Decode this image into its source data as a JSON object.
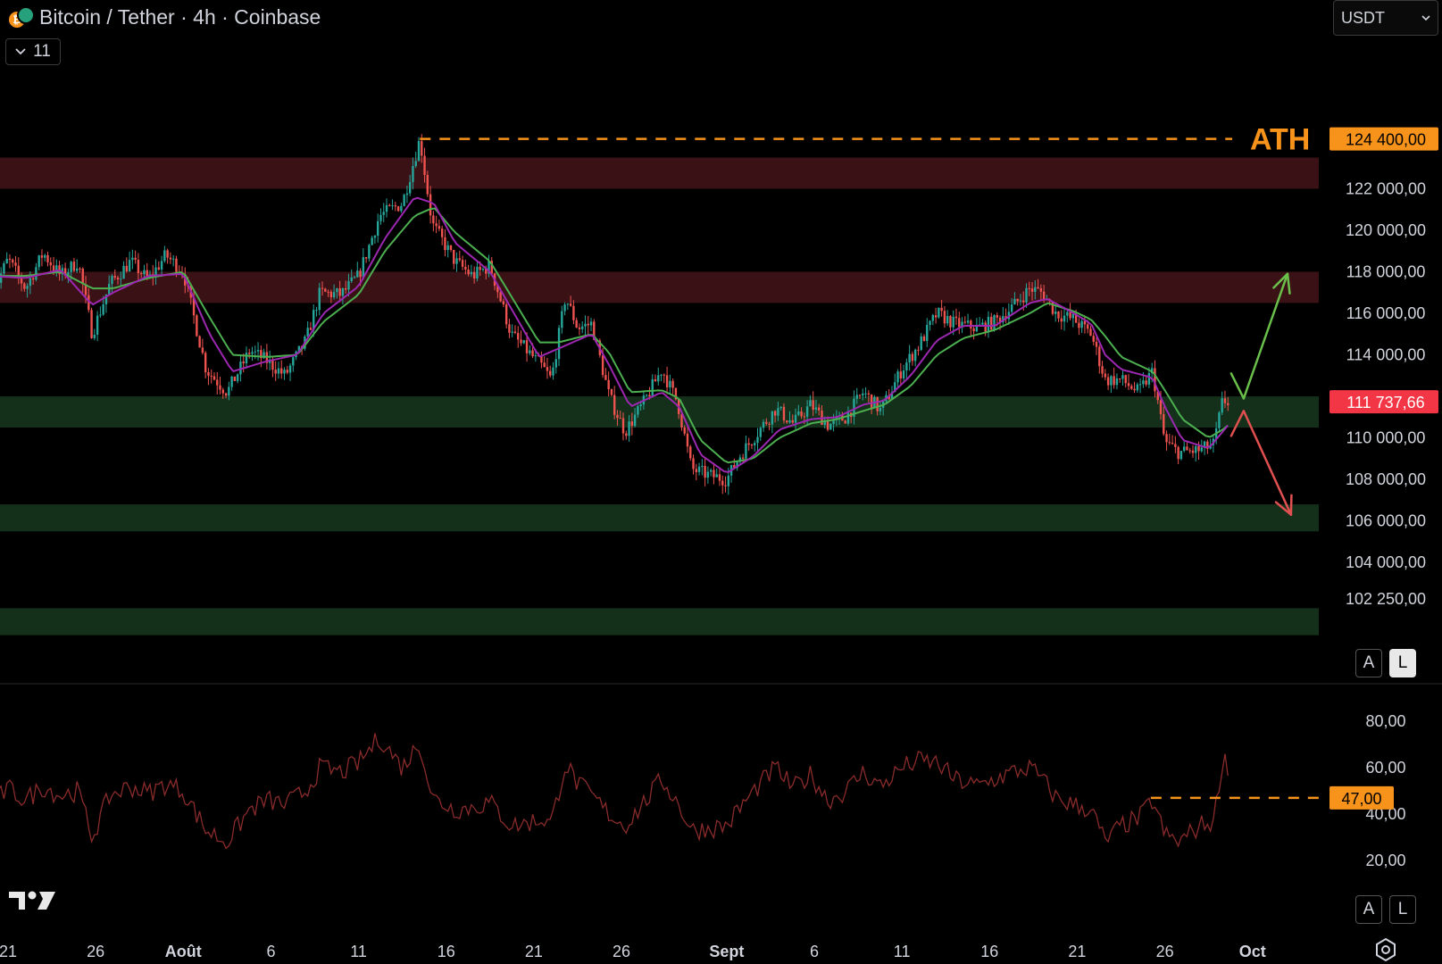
{
  "header": {
    "title": "Bitcoin / Tether · 4h · Coinbase",
    "indicator_count": "11",
    "currency": "USDT"
  },
  "scale_buttons": {
    "auto": "A",
    "log": "L"
  },
  "colors": {
    "bull": "#26a69a",
    "bear": "#ef5350",
    "ema_fast": "#9c27b0",
    "ema_slow": "#4caf50",
    "resistance_zone": "#3a1216",
    "support_zone": "#14301a",
    "ath": "#f7931a",
    "rsi": "#8a2b2b",
    "arrow_up": "#6abf4b",
    "arrow_down": "#e05050"
  },
  "chart_data": [
    {
      "type": "candlestick",
      "symbol": "Bitcoin / Tether",
      "timeframe": "4h",
      "exchange": "Coinbase",
      "ylim": [
        101000,
        125500
      ],
      "price_ticks": [
        {
          "value": 122000,
          "label": "122 000,00"
        },
        {
          "value": 120000,
          "label": "120 000,00"
        },
        {
          "value": 118000,
          "label": "118 000,00"
        },
        {
          "value": 116000,
          "label": "116 000,00"
        },
        {
          "value": 114000,
          "label": "114 000,00"
        },
        {
          "value": 110000,
          "label": "110 000,00"
        },
        {
          "value": 108000,
          "label": "108 000,00"
        },
        {
          "value": 106000,
          "label": "106 000,00"
        },
        {
          "value": 104000,
          "label": "104 000,00"
        },
        {
          "value": 102250,
          "label": "102 250,00"
        }
      ],
      "x_labels": [
        {
          "day": 21,
          "label": "21",
          "bold": false
        },
        {
          "day": 26,
          "label": "26",
          "bold": false
        },
        {
          "day": 31,
          "label": "Août",
          "bold": true
        },
        {
          "day": 36,
          "label": "6",
          "bold": false
        },
        {
          "day": 41,
          "label": "11",
          "bold": false
        },
        {
          "day": 46,
          "label": "16",
          "bold": false
        },
        {
          "day": 51,
          "label": "21",
          "bold": false
        },
        {
          "day": 56,
          "label": "26",
          "bold": false
        },
        {
          "day": 62,
          "label": "Sept",
          "bold": true
        },
        {
          "day": 67,
          "label": "6",
          "bold": false
        },
        {
          "day": 72,
          "label": "11",
          "bold": false
        },
        {
          "day": 77,
          "label": "16",
          "bold": false
        },
        {
          "day": 82,
          "label": "21",
          "bold": false
        },
        {
          "day": 87,
          "label": "26",
          "bold": false
        },
        {
          "day": 92,
          "label": "Oct",
          "bold": true
        }
      ],
      "zones": [
        {
          "kind": "resistance",
          "from": 122000,
          "to": 123500
        },
        {
          "kind": "resistance",
          "from": 116500,
          "to": 118000
        },
        {
          "kind": "support",
          "from": 110500,
          "to": 112000
        },
        {
          "kind": "support",
          "from": 105500,
          "to": 106800
        },
        {
          "kind": "support",
          "from": 100500,
          "to": 101800
        }
      ],
      "ath": {
        "value": 124400,
        "label": "124 400,00",
        "text": "ATH"
      },
      "last_price": {
        "value": 111737.66,
        "label": "111 737,66"
      },
      "price_path": [
        [
          20.1,
          117000
        ],
        [
          21,
          118600
        ],
        [
          22,
          117200
        ],
        [
          23,
          118900
        ],
        [
          24,
          117800
        ],
        [
          25,
          118500
        ],
        [
          25.8,
          115000
        ],
        [
          26.8,
          117400
        ],
        [
          28,
          118500
        ],
        [
          29,
          117600
        ],
        [
          30,
          118800
        ],
        [
          31,
          118000
        ],
        [
          32.3,
          113300
        ],
        [
          33.5,
          112200
        ],
        [
          34.8,
          114200
        ],
        [
          35.8,
          113700
        ],
        [
          36.8,
          113000
        ],
        [
          38,
          114700
        ],
        [
          38.8,
          117000
        ],
        [
          40,
          116900
        ],
        [
          41,
          117800
        ],
        [
          42.2,
          120700
        ],
        [
          43.5,
          121300
        ],
        [
          44.5,
          124400
        ],
        [
          45.2,
          120300
        ],
        [
          46.5,
          118500
        ],
        [
          47.5,
          117800
        ],
        [
          48.5,
          118300
        ],
        [
          49.7,
          115000
        ],
        [
          50.5,
          114300
        ],
        [
          51.5,
          113400
        ],
        [
          52,
          112800
        ],
        [
          52.8,
          116800
        ],
        [
          53.5,
          115300
        ],
        [
          54.3,
          115500
        ],
        [
          55.3,
          112000
        ],
        [
          56.2,
          110300
        ],
        [
          57.2,
          111600
        ],
        [
          58.3,
          113300
        ],
        [
          59.2,
          111700
        ],
        [
          60,
          108500
        ],
        [
          61,
          108200
        ],
        [
          62,
          108000
        ],
        [
          62.8,
          109200
        ],
        [
          63.8,
          110300
        ],
        [
          64.8,
          111400
        ],
        [
          65.8,
          110700
        ],
        [
          66.8,
          111600
        ],
        [
          67.8,
          110600
        ],
        [
          68.8,
          111000
        ],
        [
          69.8,
          112200
        ],
        [
          70.8,
          111300
        ],
        [
          72,
          113300
        ],
        [
          73,
          114500
        ],
        [
          74,
          116000
        ],
        [
          75,
          115500
        ],
        [
          76.3,
          115300
        ],
        [
          77.3,
          115600
        ],
        [
          78.3,
          116300
        ],
        [
          79.3,
          117200
        ],
        [
          80,
          117000
        ],
        [
          80.8,
          116000
        ],
        [
          81.8,
          115700
        ],
        [
          82.8,
          115000
        ],
        [
          83.6,
          112800
        ],
        [
          84.5,
          112800
        ],
        [
          85.5,
          112200
        ],
        [
          86.3,
          113200
        ],
        [
          87,
          109800
        ],
        [
          87.8,
          109300
        ],
        [
          89,
          109400
        ],
        [
          89.8,
          109700
        ],
        [
          90.3,
          111800
        ],
        [
          90.6,
          111737.66
        ]
      ],
      "ema_fast_path": [
        [
          20.1,
          117800
        ],
        [
          22,
          117700
        ],
        [
          24,
          118100
        ],
        [
          25.8,
          116400
        ],
        [
          27,
          117000
        ],
        [
          29,
          117800
        ],
        [
          31,
          117900
        ],
        [
          32.5,
          115000
        ],
        [
          33.8,
          113200
        ],
        [
          35.8,
          113700
        ],
        [
          37.5,
          114000
        ],
        [
          39,
          116000
        ],
        [
          41,
          117300
        ],
        [
          42.5,
          119600
        ],
        [
          44.2,
          121600
        ],
        [
          45.3,
          121300
        ],
        [
          46.5,
          119400
        ],
        [
          48.5,
          118000
        ],
        [
          49.8,
          116100
        ],
        [
          51.3,
          113900
        ],
        [
          52.4,
          114300
        ],
        [
          54.3,
          115000
        ],
        [
          55.3,
          113500
        ],
        [
          56.5,
          111500
        ],
        [
          58.3,
          112200
        ],
        [
          59.3,
          111500
        ],
        [
          60.5,
          109200
        ],
        [
          62,
          108300
        ],
        [
          63.5,
          109100
        ],
        [
          65,
          110400
        ],
        [
          66.8,
          110900
        ],
        [
          68.3,
          111000
        ],
        [
          69.8,
          111600
        ],
        [
          71,
          111800
        ],
        [
          72.5,
          113000
        ],
        [
          74,
          114700
        ],
        [
          75.5,
          115400
        ],
        [
          77.3,
          115400
        ],
        [
          79.3,
          116500
        ],
        [
          80.3,
          116700
        ],
        [
          81.8,
          116000
        ],
        [
          82.8,
          115500
        ],
        [
          83.6,
          114000
        ],
        [
          84.5,
          113300
        ],
        [
          86.3,
          112900
        ],
        [
          87,
          111500
        ],
        [
          88,
          109900
        ],
        [
          89.5,
          109500
        ],
        [
          90.3,
          110300
        ],
        [
          90.6,
          110600
        ]
      ],
      "ema_slow_path": [
        [
          20.1,
          117800
        ],
        [
          22,
          117800
        ],
        [
          24,
          118000
        ],
        [
          25.8,
          117200
        ],
        [
          27,
          117200
        ],
        [
          29,
          117700
        ],
        [
          31,
          118000
        ],
        [
          32.5,
          115800
        ],
        [
          33.8,
          114000
        ],
        [
          35.8,
          113900
        ],
        [
          37.5,
          114000
        ],
        [
          39,
          115600
        ],
        [
          41,
          116900
        ],
        [
          42.5,
          119000
        ],
        [
          44.2,
          120700
        ],
        [
          45.3,
          121100
        ],
        [
          46.5,
          119900
        ],
        [
          48.5,
          118500
        ],
        [
          49.8,
          116700
        ],
        [
          51.3,
          114600
        ],
        [
          52.4,
          114600
        ],
        [
          54.3,
          115000
        ],
        [
          55.3,
          114100
        ],
        [
          56.5,
          112200
        ],
        [
          58.3,
          112300
        ],
        [
          59.3,
          111900
        ],
        [
          60.5,
          109900
        ],
        [
          62,
          108800
        ],
        [
          63.5,
          109000
        ],
        [
          65,
          110000
        ],
        [
          66.8,
          110700
        ],
        [
          68.3,
          110900
        ],
        [
          69.8,
          111300
        ],
        [
          71,
          111600
        ],
        [
          72.5,
          112500
        ],
        [
          74,
          114000
        ],
        [
          75.5,
          114800
        ],
        [
          77.3,
          115200
        ],
        [
          79.3,
          116000
        ],
        [
          80.3,
          116500
        ],
        [
          81.8,
          116100
        ],
        [
          82.8,
          115700
        ],
        [
          83.6,
          114900
        ],
        [
          84.5,
          113900
        ],
        [
          86.3,
          113200
        ],
        [
          87,
          112300
        ],
        [
          88,
          110900
        ],
        [
          89.5,
          110000
        ],
        [
          90.3,
          110400
        ],
        [
          90.6,
          110600
        ]
      ],
      "scenario_arrows": [
        {
          "direction": "up",
          "from": [
            91.5,
            111900
          ],
          "to": [
            94,
            117900
          ]
        },
        {
          "direction": "down",
          "from": [
            91.5,
            111300
          ],
          "to": [
            94.2,
            106300
          ]
        }
      ]
    },
    {
      "type": "line",
      "indicator": "RSI",
      "ylim": [
        12,
        85
      ],
      "y_ticks": [
        {
          "value": 80,
          "label": "80,00"
        },
        {
          "value": 60,
          "label": "60,00"
        },
        {
          "value": 40,
          "label": "40,00"
        },
        {
          "value": 20,
          "label": "20,00"
        }
      ],
      "level_line": {
        "value": 47,
        "label": "47,00",
        "from_day": 86.2
      },
      "series": [
        {
          "values_path": [
            [
              20.1,
              44
            ],
            [
              21,
              51
            ],
            [
              22,
              46
            ],
            [
              23,
              52
            ],
            [
              24,
              48
            ],
            [
              25,
              50
            ],
            [
              25.8,
              30
            ],
            [
              26.8,
              48
            ],
            [
              28,
              52
            ],
            [
              29,
              49
            ],
            [
              30,
              53
            ],
            [
              31,
              50
            ],
            [
              32.3,
              33
            ],
            [
              33.5,
              28
            ],
            [
              34.8,
              42
            ],
            [
              35.8,
              46
            ],
            [
              36.8,
              44
            ],
            [
              38,
              50
            ],
            [
              38.8,
              60
            ],
            [
              40,
              58
            ],
            [
              41,
              62
            ],
            [
              42.2,
              73
            ],
            [
              43.5,
              60
            ],
            [
              44.5,
              71
            ],
            [
              45.2,
              47
            ],
            [
              46.5,
              42
            ],
            [
              47.5,
              43
            ],
            [
              48.5,
              45
            ],
            [
              49.7,
              35
            ],
            [
              50.5,
              36
            ],
            [
              51.5,
              38
            ],
            [
              52,
              36
            ],
            [
              52.8,
              62
            ],
            [
              53.5,
              53
            ],
            [
              54.3,
              48
            ],
            [
              55.3,
              40
            ],
            [
              56.2,
              35
            ],
            [
              57.2,
              44
            ],
            [
              58.3,
              55
            ],
            [
              59.2,
              45
            ],
            [
              60,
              33
            ],
            [
              61,
              34
            ],
            [
              62,
              35
            ],
            [
              62.8,
              43
            ],
            [
              63.8,
              52
            ],
            [
              64.8,
              60
            ],
            [
              65.8,
              51
            ],
            [
              66.8,
              57
            ],
            [
              67.8,
              46
            ],
            [
              68.8,
              50
            ],
            [
              69.8,
              58
            ],
            [
              70.8,
              52
            ],
            [
              72,
              60
            ],
            [
              73,
              63
            ],
            [
              74,
              62
            ],
            [
              75,
              55
            ],
            [
              76.3,
              52
            ],
            [
              77.3,
              55
            ],
            [
              78.3,
              58
            ],
            [
              79.3,
              60
            ],
            [
              80,
              55
            ],
            [
              80.8,
              47
            ],
            [
              81.8,
              44
            ],
            [
              82.8,
              42
            ],
            [
              83.6,
              28
            ],
            [
              84.5,
              35
            ],
            [
              85.5,
              38
            ],
            [
              86.3,
              46
            ],
            [
              87,
              31
            ],
            [
              87.8,
              28
            ],
            [
              89,
              35
            ],
            [
              89.8,
              37
            ],
            [
              90.3,
              64
            ],
            [
              90.6,
              61
            ]
          ]
        }
      ]
    }
  ]
}
